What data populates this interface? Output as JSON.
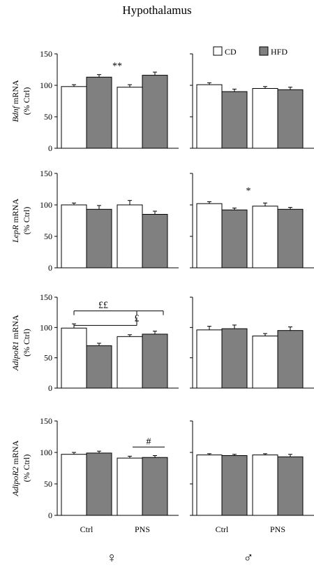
{
  "title": "Hypothalamus",
  "legend": {
    "position": "top-right",
    "items": [
      {
        "label": "CD",
        "color": "#ffffff"
      },
      {
        "label": "HFD",
        "color": "#808080"
      }
    ]
  },
  "sex_labels": {
    "female": "♀",
    "male": "♂"
  },
  "colors": {
    "CD": "#ffffff",
    "HFD": "#808080",
    "axis": "#000000"
  },
  "chart_data": [
    {
      "type": "bar",
      "ylabel_gene": "Bdnf",
      "ylabel_suffix": " mRNA",
      "ylabel_line2": "(% Ctrl)",
      "ylim": [
        0,
        150
      ],
      "yticks": [
        0,
        50,
        100,
        150
      ],
      "groups": [
        "Ctrl",
        "PNS"
      ],
      "panels": {
        "female": {
          "CD": [
            98,
            97
          ],
          "HFD": [
            113,
            116
          ],
          "CD_err": [
            3,
            4
          ],
          "HFD_err": [
            4,
            5
          ]
        },
        "male": {
          "CD": [
            101,
            95
          ],
          "HFD": [
            90,
            93
          ],
          "CD_err": [
            3,
            3
          ],
          "HFD_err": [
            4,
            4
          ]
        }
      },
      "annotations": [
        {
          "text": "**",
          "panel": "female",
          "y_value": 126
        }
      ]
    },
    {
      "type": "bar",
      "ylabel_gene": "LepR",
      "ylabel_suffix": " mRNA",
      "ylabel_line2": "(% Ctrl)",
      "ylim": [
        0,
        150
      ],
      "yticks": [
        0,
        50,
        100,
        150
      ],
      "groups": [
        "Ctrl",
        "PNS"
      ],
      "panels": {
        "female": {
          "CD": [
            100,
            100
          ],
          "HFD": [
            93,
            85
          ],
          "CD_err": [
            3,
            7
          ],
          "HFD_err": [
            6,
            5
          ]
        },
        "male": {
          "CD": [
            102,
            98
          ],
          "HFD": [
            92,
            93
          ],
          "CD_err": [
            3,
            5
          ],
          "HFD_err": [
            3,
            3
          ]
        }
      },
      "annotations": [
        {
          "text": "*",
          "panel": "male",
          "y_value": 118
        }
      ]
    },
    {
      "type": "bar",
      "ylabel_gene": "AdipoR1",
      "ylabel_suffix": " mRNA",
      "ylabel_line2": "(% Ctrl)",
      "ylim": [
        0,
        150
      ],
      "yticks": [
        0,
        50,
        100,
        150
      ],
      "groups": [
        "Ctrl",
        "PNS"
      ],
      "panels": {
        "female": {
          "CD": [
            99,
            85
          ],
          "HFD": [
            70,
            89
          ],
          "CD_err": [
            7,
            3
          ],
          "HFD_err": [
            4,
            5
          ]
        },
        "male": {
          "CD": [
            96,
            86
          ],
          "HFD": [
            98,
            95
          ],
          "CD_err": [
            6,
            4
          ],
          "HFD_err": [
            6,
            6
          ]
        }
      },
      "annotations": [
        {
          "text": "££",
          "panel": "female",
          "y_value": 132
        },
        {
          "text": "£",
          "panel": "female",
          "y_value": 108
        }
      ]
    },
    {
      "type": "bar",
      "ylabel_gene": "AdipoR2",
      "ylabel_suffix": " mRNA",
      "ylabel_line2": "(% Ctrl)",
      "ylim": [
        0,
        150
      ],
      "yticks": [
        0,
        50,
        100,
        150
      ],
      "groups": [
        "Ctrl",
        "PNS"
      ],
      "panels": {
        "female": {
          "CD": [
            97,
            91
          ],
          "HFD": [
            99,
            92
          ],
          "CD_err": [
            3,
            3
          ],
          "HFD_err": [
            3,
            3
          ]
        },
        "male": {
          "CD": [
            96,
            96
          ],
          "HFD": [
            95,
            93
          ],
          "CD_err": [
            2,
            2
          ],
          "HFD_err": [
            2,
            4
          ]
        }
      },
      "annotations": [
        {
          "text": "#",
          "panel": "female",
          "y_value": 113
        }
      ]
    }
  ]
}
